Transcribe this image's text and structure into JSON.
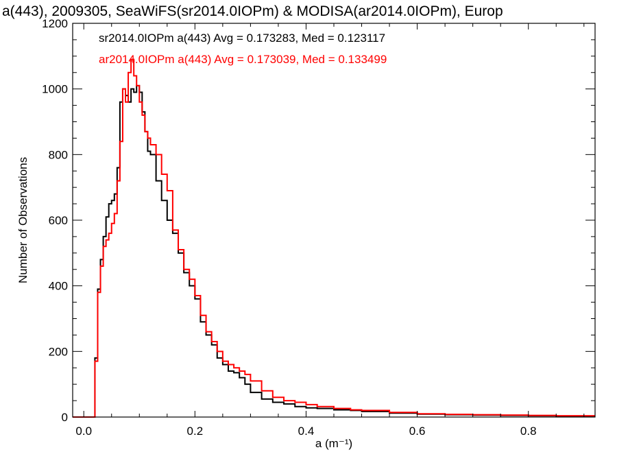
{
  "chart_data": {
    "type": "line",
    "title": "a(443), 2009305, SeaWiFS(sr2014.0IOPm) & MODISA(ar2014.0IOPm), Europ",
    "xlabel": "a (m⁻¹)",
    "ylabel": "Number of Observations",
    "xlim": [
      -0.02,
      0.92
    ],
    "ylim": [
      0,
      1200
    ],
    "x_ticks": [
      0.0,
      0.2,
      0.4,
      0.6,
      0.8
    ],
    "x_tick_labels": [
      "0.0",
      "0.2",
      "0.4",
      "0.6",
      "0.8"
    ],
    "y_ticks": [
      0,
      200,
      400,
      600,
      800,
      1000,
      1200
    ],
    "y_tick_labels": [
      "0",
      "200",
      "400",
      "600",
      "800",
      "1000",
      "1200"
    ],
    "grid": false,
    "legend_position": "top-left",
    "line_style": "step",
    "series": [
      {
        "name": "sr2014.0IOPm a(443) Avg = 0.173283, Med = 0.123117",
        "color": "#000000",
        "x": [
          -0.02,
          0.015,
          0.02,
          0.025,
          0.03,
          0.035,
          0.04,
          0.045,
          0.05,
          0.055,
          0.06,
          0.065,
          0.07,
          0.075,
          0.08,
          0.085,
          0.09,
          0.095,
          0.1,
          0.105,
          0.11,
          0.115,
          0.12,
          0.13,
          0.14,
          0.15,
          0.16,
          0.17,
          0.18,
          0.19,
          0.2,
          0.21,
          0.22,
          0.23,
          0.24,
          0.25,
          0.26,
          0.27,
          0.28,
          0.29,
          0.3,
          0.32,
          0.34,
          0.36,
          0.38,
          0.4,
          0.42,
          0.45,
          0.48,
          0.5,
          0.55,
          0.6,
          0.65,
          0.7,
          0.75,
          0.8,
          0.85,
          0.9,
          0.92
        ],
        "y": [
          0,
          0,
          180,
          390,
          480,
          550,
          610,
          650,
          660,
          680,
          760,
          960,
          1000,
          980,
          960,
          1000,
          990,
          1010,
          990,
          930,
          870,
          810,
          800,
          720,
          660,
          600,
          560,
          500,
          440,
          400,
          360,
          290,
          250,
          220,
          180,
          160,
          140,
          135,
          120,
          100,
          75,
          55,
          45,
          40,
          32,
          28,
          26,
          22,
          20,
          17,
          12,
          9,
          7,
          6,
          5,
          4,
          3,
          3,
          3
        ]
      },
      {
        "name": "ar2014.0IOPm a(443) Avg = 0.173039, Med = 0.133499",
        "color": "#ff0000",
        "x": [
          -0.02,
          0.015,
          0.02,
          0.025,
          0.03,
          0.035,
          0.04,
          0.045,
          0.05,
          0.055,
          0.06,
          0.065,
          0.07,
          0.075,
          0.08,
          0.085,
          0.09,
          0.095,
          0.1,
          0.105,
          0.11,
          0.115,
          0.12,
          0.13,
          0.14,
          0.15,
          0.16,
          0.17,
          0.18,
          0.19,
          0.2,
          0.21,
          0.22,
          0.23,
          0.24,
          0.25,
          0.26,
          0.27,
          0.28,
          0.29,
          0.3,
          0.32,
          0.34,
          0.36,
          0.38,
          0.4,
          0.42,
          0.45,
          0.48,
          0.5,
          0.55,
          0.6,
          0.65,
          0.7,
          0.75,
          0.8,
          0.85,
          0.9,
          0.92
        ],
        "y": [
          0,
          0,
          170,
          380,
          460,
          520,
          540,
          560,
          590,
          620,
          720,
          840,
          1000,
          960,
          1050,
          1090,
          1040,
          1010,
          960,
          920,
          870,
          850,
          830,
          800,
          740,
          690,
          570,
          510,
          450,
          420,
          370,
          310,
          260,
          230,
          200,
          170,
          160,
          150,
          140,
          130,
          110,
          80,
          60,
          50,
          45,
          38,
          32,
          26,
          22,
          20,
          14,
          10,
          8,
          7,
          6,
          5,
          4,
          4,
          4
        ]
      }
    ]
  }
}
